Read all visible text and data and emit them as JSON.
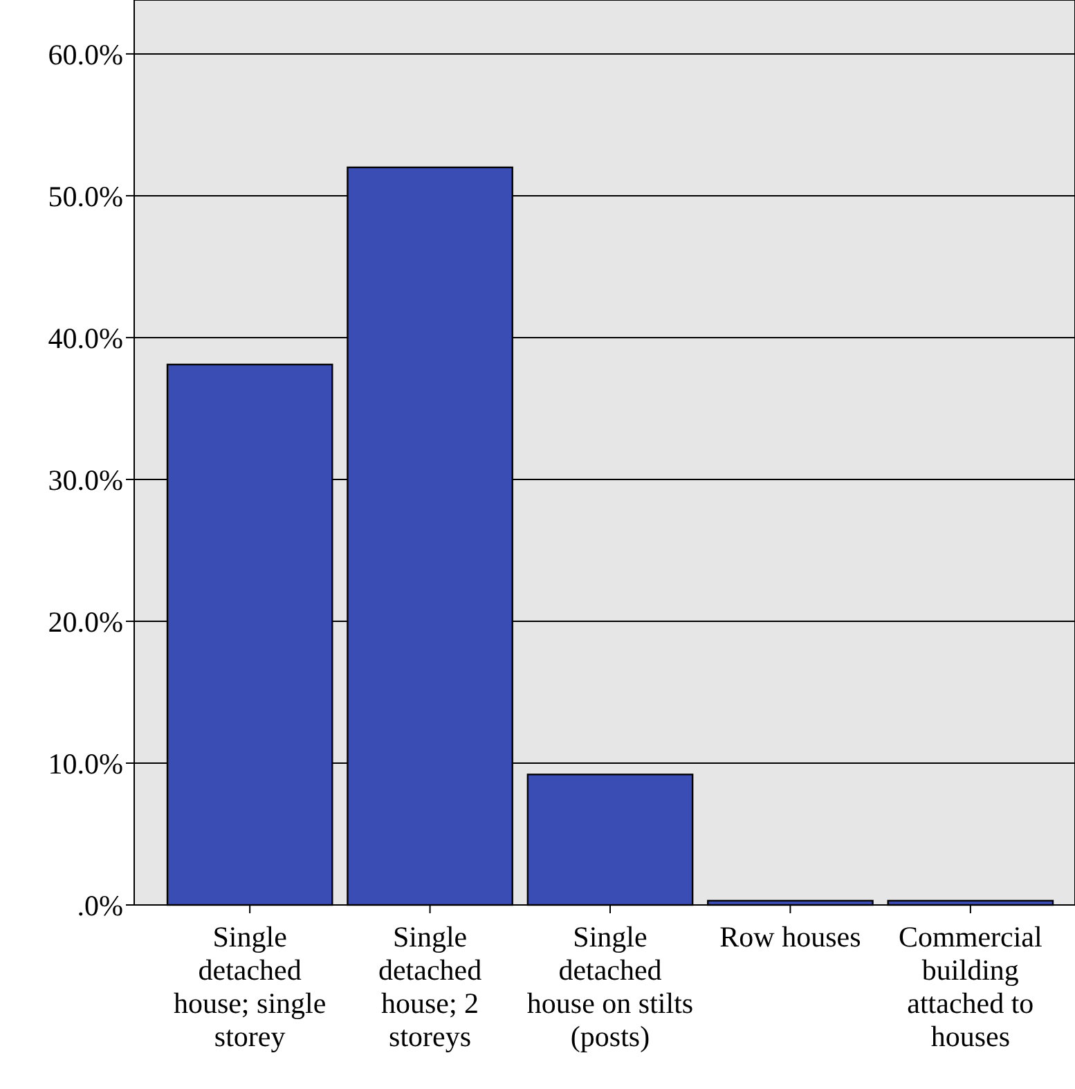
{
  "chart_data": {
    "type": "bar",
    "categories": [
      "Single detached house; single storey",
      "Single detached house; 2 storeys",
      "Single detached house on stilts (posts)",
      "Row houses",
      "Commercial building attached to houses"
    ],
    "values": [
      38.1,
      52.0,
      9.2,
      0.3,
      0.3
    ],
    "color": "#3a4db5",
    "ylim": [
      0,
      63.8
    ],
    "yticks": [
      {
        "value": 0,
        "label": ".0%"
      },
      {
        "value": 10,
        "label": "10.0%"
      },
      {
        "value": 20,
        "label": "20.0%"
      },
      {
        "value": 30,
        "label": "30.0%"
      },
      {
        "value": 40,
        "label": "40.0%"
      },
      {
        "value": 50,
        "label": "50.0%"
      },
      {
        "value": 60,
        "label": "60.0%"
      }
    ],
    "grid": "y"
  }
}
